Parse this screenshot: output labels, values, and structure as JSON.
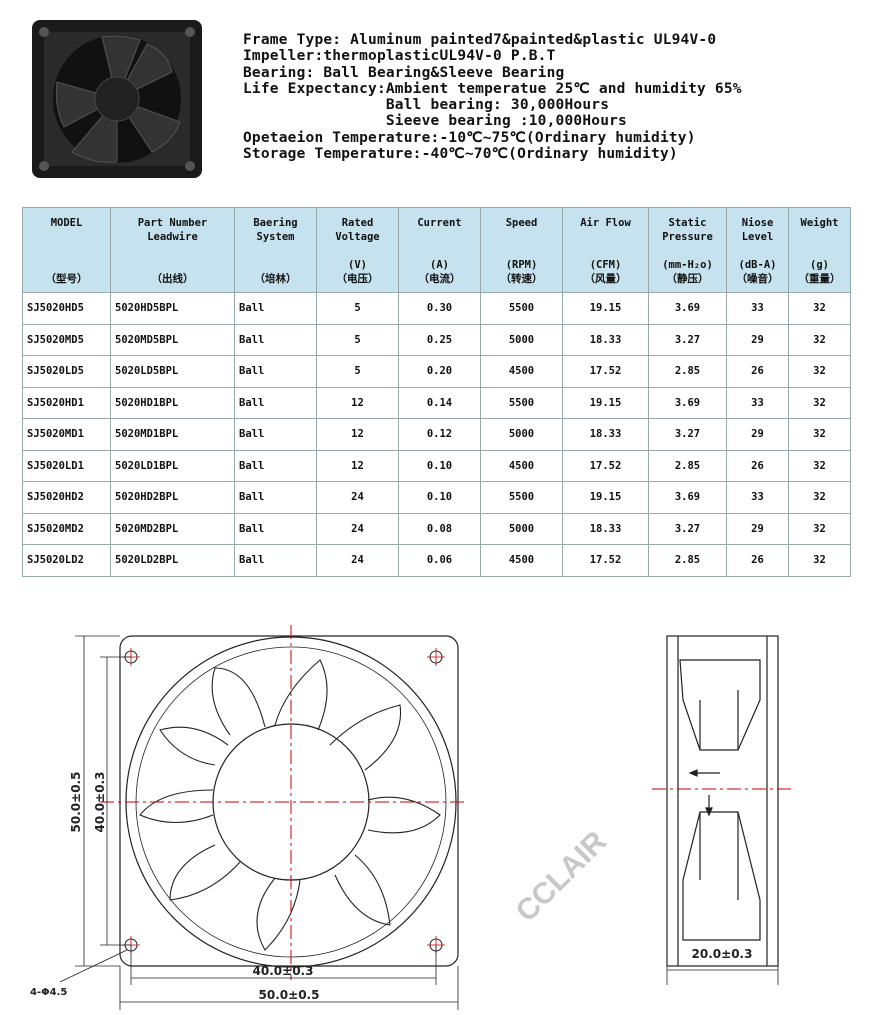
{
  "specs": [
    "Frame Type: Aluminum painted7&painted&plastic UL94V-0",
    "Impeller:thermoplasticUL94V-0 P.B.T",
    "Bearing: Ball Bearing&Sleeve Bearing",
    "Life Expectancy:Ambient temperatue 25℃ and humidity 65%",
    "                Ball bearing: 30,000Hours",
    "                Sieeve bearing :10,000Hours",
    "Opetaeion Temperature:-10℃~75℃(Ordinary humidity)",
    "Storage Temperature:-40℃~70℃(Ordinary humidity)"
  ],
  "table": {
    "headers": [
      {
        "top": "MODEL",
        "unit": "（型号）"
      },
      {
        "top": "Part Number\nLeadwire",
        "unit": "（出线）"
      },
      {
        "top": "Baering\nSystem",
        "unit": "（培林）"
      },
      {
        "top": "Rated\nVoltage",
        "unit": "(V)\n（电压）"
      },
      {
        "top": "Current",
        "unit": "(A)\n（电流）"
      },
      {
        "top": "Speed",
        "unit": "(RPM)\n（转速）"
      },
      {
        "top": "Air Flow",
        "unit": "(CFM)\n（风量）"
      },
      {
        "top": "Static\nPressure",
        "unit": "(mm-H₂o)\n（静压）"
      },
      {
        "top": "Niose\nLevel",
        "unit": "(dB-A)\n（噪音）"
      },
      {
        "top": "Weight",
        "unit": "(g)\n（重量）"
      }
    ],
    "rows": [
      [
        "SJ5020HD5",
        "5020HD5BPL",
        "Ball",
        "5",
        "0.30",
        "5500",
        "19.15",
        "3.69",
        "33",
        "32"
      ],
      [
        "SJ5020MD5",
        "5020MD5BPL",
        "Ball",
        "5",
        "0.25",
        "5000",
        "18.33",
        "3.27",
        "29",
        "32"
      ],
      [
        "SJ5020LD5",
        "5020LD5BPL",
        "Ball",
        "5",
        "0.20",
        "4500",
        "17.52",
        "2.85",
        "26",
        "32"
      ],
      [
        "SJ5020HD1",
        "5020HD1BPL",
        "Ball",
        "12",
        "0.14",
        "5500",
        "19.15",
        "3.69",
        "33",
        "32"
      ],
      [
        "SJ5020MD1",
        "5020MD1BPL",
        "Ball",
        "12",
        "0.12",
        "5000",
        "18.33",
        "3.27",
        "29",
        "32"
      ],
      [
        "SJ5020LD1",
        "5020LD1BPL",
        "Ball",
        "12",
        "0.10",
        "4500",
        "17.52",
        "2.85",
        "26",
        "32"
      ],
      [
        "SJ5020HD2",
        "5020HD2BPL",
        "Ball",
        "24",
        "0.10",
        "5500",
        "19.15",
        "3.69",
        "33",
        "32"
      ],
      [
        "SJ5020MD2",
        "5020MD2BPL",
        "Ball",
        "24",
        "0.08",
        "5000",
        "18.33",
        "3.27",
        "29",
        "32"
      ],
      [
        "SJ5020LD2",
        "5020LD2BPL",
        "Ball",
        "24",
        "0.06",
        "4500",
        "17.52",
        "2.85",
        "26",
        "32"
      ]
    ]
  },
  "drawing": {
    "outer_height": "50.0±0.5",
    "hole_height": "40.0±0.3",
    "hole_width": "40.0±0.3",
    "outer_width": "50.0±0.5",
    "holes": "4-Φ4.5",
    "depth": "20.0±0.3"
  },
  "watermark": "CCLAIR"
}
